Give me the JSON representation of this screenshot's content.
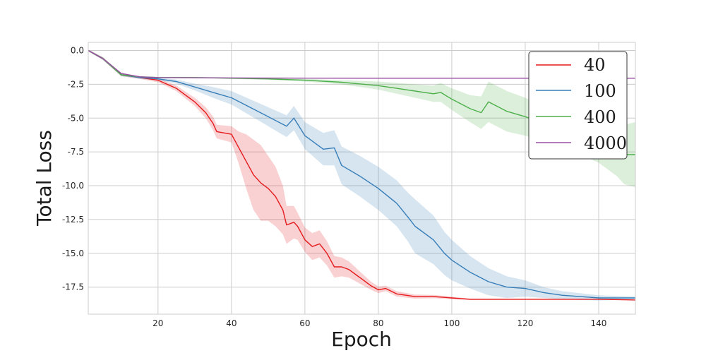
{
  "chart_data": {
    "type": "line",
    "xlabel": "Epoch",
    "ylabel": "Total Loss",
    "xlim": [
      1,
      150
    ],
    "ylim": [
      -19.5,
      0.6
    ],
    "xticks": [
      20,
      40,
      60,
      80,
      100,
      120,
      140
    ],
    "yticks": [
      0.0,
      -2.5,
      -5.0,
      -7.5,
      -10.0,
      -12.5,
      -15.0,
      -17.5
    ],
    "ytick_labels": [
      "0.0",
      "-2.5",
      "-5.0",
      "-7.5",
      "-10.0",
      "-12.5",
      "-15.0",
      "-17.5"
    ],
    "grid": true,
    "legend_position": "top-right",
    "series": [
      {
        "name": "40",
        "color": "#e41a1c",
        "x": [
          1,
          5,
          10,
          15,
          20,
          25,
          30,
          33,
          35,
          36,
          40,
          42,
          44,
          46,
          48,
          50,
          52,
          54,
          55,
          57,
          58,
          60,
          62,
          64,
          66,
          68,
          70,
          72,
          74,
          76,
          78,
          80,
          82,
          85,
          90,
          95,
          100,
          105,
          110,
          120,
          130,
          140,
          150
        ],
        "y": [
          0.0,
          -0.6,
          -1.8,
          -2.0,
          -2.2,
          -2.8,
          -3.8,
          -4.6,
          -5.4,
          -6.0,
          -6.2,
          -7.2,
          -8.2,
          -9.2,
          -9.8,
          -10.2,
          -10.8,
          -11.8,
          -12.9,
          -12.7,
          -13.0,
          -14.0,
          -14.5,
          -14.3,
          -15.0,
          -16.0,
          -16.0,
          -16.2,
          -16.6,
          -17.0,
          -17.4,
          -17.7,
          -17.6,
          -18.0,
          -18.2,
          -18.2,
          -18.3,
          -18.4,
          -18.4,
          -18.4,
          -18.4,
          -18.4,
          -18.45
        ],
        "band": [
          0.05,
          0.1,
          0.1,
          0.1,
          0.15,
          0.2,
          0.3,
          0.4,
          0.5,
          0.5,
          0.6,
          1.2,
          2.0,
          2.6,
          2.8,
          2.4,
          2.2,
          1.8,
          1.4,
          1.2,
          1.0,
          0.9,
          1.0,
          1.0,
          0.9,
          0.8,
          0.7,
          0.6,
          0.5,
          0.4,
          0.3,
          0.25,
          0.2,
          0.2,
          0.15,
          0.12,
          0.1,
          0.05,
          0.04,
          0.03,
          0.02,
          0.02,
          0.02
        ]
      },
      {
        "name": "100",
        "color": "#377eb8",
        "x": [
          1,
          5,
          10,
          15,
          20,
          25,
          30,
          35,
          40,
          45,
          50,
          55,
          57,
          60,
          65,
          68,
          70,
          75,
          80,
          85,
          88,
          90,
          95,
          98,
          100,
          105,
          110,
          115,
          120,
          125,
          130,
          135,
          140,
          145,
          150
        ],
        "y": [
          0.0,
          -0.6,
          -1.8,
          -2.0,
          -2.1,
          -2.3,
          -2.7,
          -3.1,
          -3.5,
          -4.2,
          -4.9,
          -5.6,
          -5.0,
          -6.3,
          -7.3,
          -7.2,
          -8.5,
          -9.3,
          -10.2,
          -11.3,
          -12.3,
          -13.0,
          -14.0,
          -15.0,
          -15.5,
          -16.4,
          -17.1,
          -17.5,
          -17.6,
          -17.9,
          -18.1,
          -18.2,
          -18.3,
          -18.3,
          -18.3
        ],
        "band": [
          0.05,
          0.1,
          0.1,
          0.1,
          0.1,
          0.15,
          0.25,
          0.4,
          0.5,
          0.6,
          0.7,
          0.8,
          0.9,
          1.0,
          1.2,
          1.3,
          1.4,
          1.5,
          1.6,
          1.7,
          1.8,
          2.0,
          1.8,
          1.6,
          1.5,
          1.2,
          1.0,
          0.8,
          0.6,
          0.4,
          0.3,
          0.25,
          0.2,
          0.15,
          0.1
        ]
      },
      {
        "name": "400",
        "color": "#4daf4a",
        "x": [
          1,
          5,
          10,
          15,
          20,
          30,
          40,
          50,
          60,
          70,
          80,
          85,
          90,
          95,
          97,
          100,
          105,
          108,
          110,
          115,
          120,
          125,
          130,
          135,
          140,
          145,
          147,
          150
        ],
        "y": [
          0.0,
          -0.6,
          -1.8,
          -1.95,
          -2.0,
          -2.0,
          -2.05,
          -2.1,
          -2.2,
          -2.35,
          -2.6,
          -2.8,
          -3.0,
          -3.2,
          -3.1,
          -3.6,
          -4.3,
          -4.6,
          -3.8,
          -4.5,
          -4.9,
          -5.4,
          -5.9,
          -6.4,
          -6.9,
          -7.5,
          -7.7,
          -7.7
        ],
        "band": [
          0.05,
          0.1,
          0.1,
          0.05,
          0.05,
          0.05,
          0.06,
          0.08,
          0.1,
          0.15,
          0.3,
          0.4,
          0.5,
          0.6,
          0.7,
          0.8,
          1.0,
          1.2,
          1.5,
          1.5,
          1.4,
          1.3,
          1.2,
          1.3,
          1.4,
          1.8,
          2.2,
          2.4
        ]
      },
      {
        "name": "4000",
        "color": "#984ea3",
        "x": [
          1,
          5,
          10,
          15,
          20,
          30,
          50,
          80,
          100,
          120,
          150
        ],
        "y": [
          0.0,
          -0.6,
          -1.7,
          -1.95,
          -2.0,
          -2.02,
          -2.04,
          -2.05,
          -2.05,
          -2.05,
          -2.05
        ],
        "band": [
          0.03,
          0.05,
          0.05,
          0.03,
          0.02,
          0.02,
          0.02,
          0.02,
          0.02,
          0.02,
          0.02
        ]
      }
    ]
  }
}
